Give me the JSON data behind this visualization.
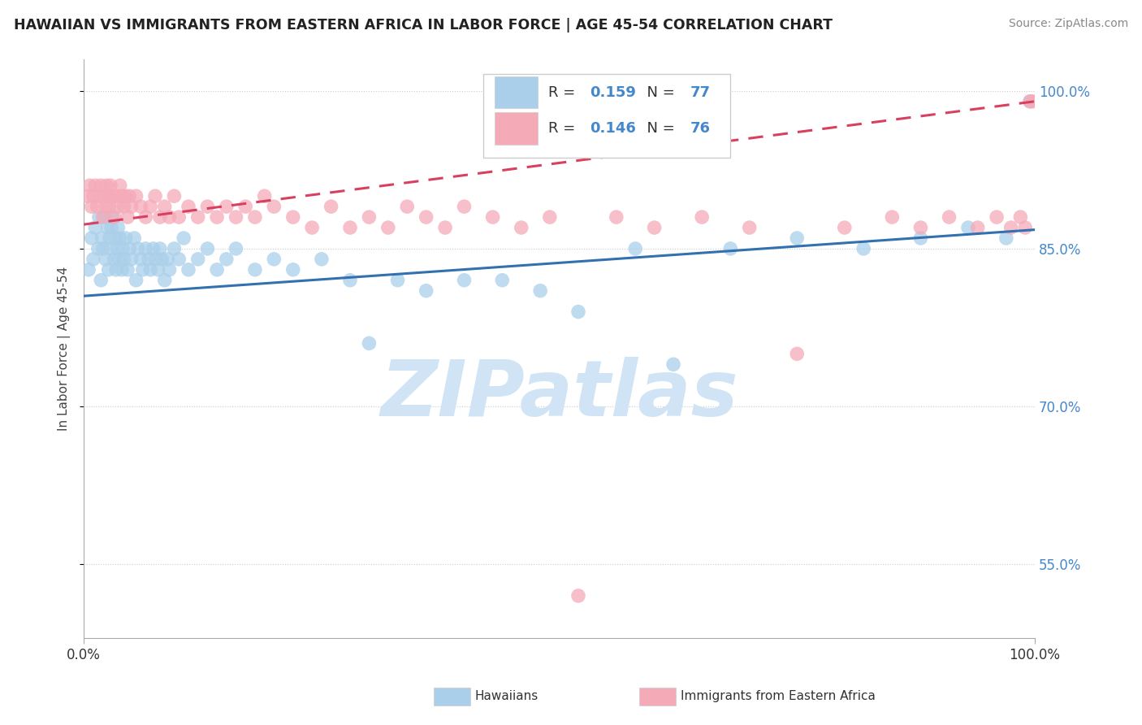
{
  "title": "HAWAIIAN VS IMMIGRANTS FROM EASTERN AFRICA IN LABOR FORCE | AGE 45-54 CORRELATION CHART",
  "source": "Source: ZipAtlas.com",
  "ylabel": "In Labor Force | Age 45-54",
  "xlim": [
    0.0,
    1.0
  ],
  "ylim": [
    0.48,
    1.03
  ],
  "yticks": [
    0.55,
    0.7,
    0.85,
    1.0
  ],
  "ytick_labels": [
    "55.0%",
    "70.0%",
    "85.0%",
    "100.0%"
  ],
  "hawaiian_R": 0.159,
  "hawaiian_N": 77,
  "eastern_africa_R": 0.146,
  "eastern_africa_N": 76,
  "hawaiian_color": "#aacfea",
  "eastern_africa_color": "#f5aab8",
  "hawaiian_line_color": "#3370b0",
  "eastern_africa_line_color": "#d94060",
  "watermark": "ZIPatlas",
  "watermark_color": "#d0e4f5",
  "legend_label_1": "Hawaiians",
  "legend_label_2": "Immigrants from Eastern Africa",
  "hawaiian_x": [
    0.005,
    0.008,
    0.01,
    0.012,
    0.015,
    0.016,
    0.018,
    0.019,
    0.02,
    0.022,
    0.023,
    0.025,
    0.026,
    0.027,
    0.028,
    0.029,
    0.03,
    0.032,
    0.033,
    0.034,
    0.035,
    0.036,
    0.037,
    0.038,
    0.04,
    0.041,
    0.042,
    0.044,
    0.046,
    0.048,
    0.05,
    0.053,
    0.055,
    0.057,
    0.06,
    0.062,
    0.065,
    0.068,
    0.07,
    0.073,
    0.075,
    0.078,
    0.08,
    0.082,
    0.085,
    0.088,
    0.09,
    0.095,
    0.1,
    0.105,
    0.11,
    0.12,
    0.13,
    0.14,
    0.15,
    0.16,
    0.18,
    0.2,
    0.22,
    0.25,
    0.28,
    0.3,
    0.33,
    0.36,
    0.4,
    0.44,
    0.48,
    0.52,
    0.58,
    0.62,
    0.68,
    0.75,
    0.82,
    0.88,
    0.93,
    0.97,
    0.995
  ],
  "hawaiian_y": [
    0.83,
    0.86,
    0.84,
    0.87,
    0.85,
    0.88,
    0.82,
    0.86,
    0.85,
    0.88,
    0.84,
    0.87,
    0.83,
    0.86,
    0.85,
    0.87,
    0.88,
    0.84,
    0.86,
    0.83,
    0.85,
    0.87,
    0.84,
    0.86,
    0.83,
    0.85,
    0.84,
    0.86,
    0.83,
    0.85,
    0.84,
    0.86,
    0.82,
    0.85,
    0.84,
    0.83,
    0.85,
    0.84,
    0.83,
    0.85,
    0.84,
    0.83,
    0.85,
    0.84,
    0.82,
    0.84,
    0.83,
    0.85,
    0.84,
    0.86,
    0.83,
    0.84,
    0.85,
    0.83,
    0.84,
    0.85,
    0.83,
    0.84,
    0.83,
    0.84,
    0.82,
    0.76,
    0.82,
    0.81,
    0.82,
    0.82,
    0.81,
    0.79,
    0.85,
    0.74,
    0.85,
    0.86,
    0.85,
    0.86,
    0.87,
    0.86,
    0.99
  ],
  "eastern_africa_x": [
    0.004,
    0.006,
    0.008,
    0.01,
    0.012,
    0.014,
    0.016,
    0.018,
    0.02,
    0.022,
    0.023,
    0.024,
    0.026,
    0.027,
    0.028,
    0.03,
    0.032,
    0.034,
    0.036,
    0.038,
    0.04,
    0.042,
    0.044,
    0.046,
    0.048,
    0.05,
    0.055,
    0.06,
    0.065,
    0.07,
    0.075,
    0.08,
    0.085,
    0.09,
    0.095,
    0.1,
    0.11,
    0.12,
    0.13,
    0.14,
    0.15,
    0.16,
    0.17,
    0.18,
    0.19,
    0.2,
    0.22,
    0.24,
    0.26,
    0.28,
    0.3,
    0.32,
    0.34,
    0.36,
    0.38,
    0.4,
    0.43,
    0.46,
    0.49,
    0.52,
    0.56,
    0.6,
    0.65,
    0.7,
    0.75,
    0.8,
    0.85,
    0.88,
    0.91,
    0.94,
    0.96,
    0.975,
    0.985,
    0.99,
    0.995,
    0.998
  ],
  "eastern_africa_y": [
    0.9,
    0.91,
    0.89,
    0.9,
    0.91,
    0.89,
    0.9,
    0.91,
    0.88,
    0.9,
    0.89,
    0.91,
    0.9,
    0.89,
    0.91,
    0.9,
    0.88,
    0.9,
    0.89,
    0.91,
    0.9,
    0.89,
    0.9,
    0.88,
    0.9,
    0.89,
    0.9,
    0.89,
    0.88,
    0.89,
    0.9,
    0.88,
    0.89,
    0.88,
    0.9,
    0.88,
    0.89,
    0.88,
    0.89,
    0.88,
    0.89,
    0.88,
    0.89,
    0.88,
    0.9,
    0.89,
    0.88,
    0.87,
    0.89,
    0.87,
    0.88,
    0.87,
    0.89,
    0.88,
    0.87,
    0.89,
    0.88,
    0.87,
    0.88,
    0.52,
    0.88,
    0.87,
    0.88,
    0.87,
    0.75,
    0.87,
    0.88,
    0.87,
    0.88,
    0.87,
    0.88,
    0.87,
    0.88,
    0.87,
    0.99,
    0.99
  ],
  "h_line_x0": 0.0,
  "h_line_y0": 0.805,
  "h_line_x1": 1.0,
  "h_line_y1": 0.868,
  "e_line_x0": 0.0,
  "e_line_y0": 0.873,
  "e_line_x1": 1.0,
  "e_line_y1": 0.99
}
